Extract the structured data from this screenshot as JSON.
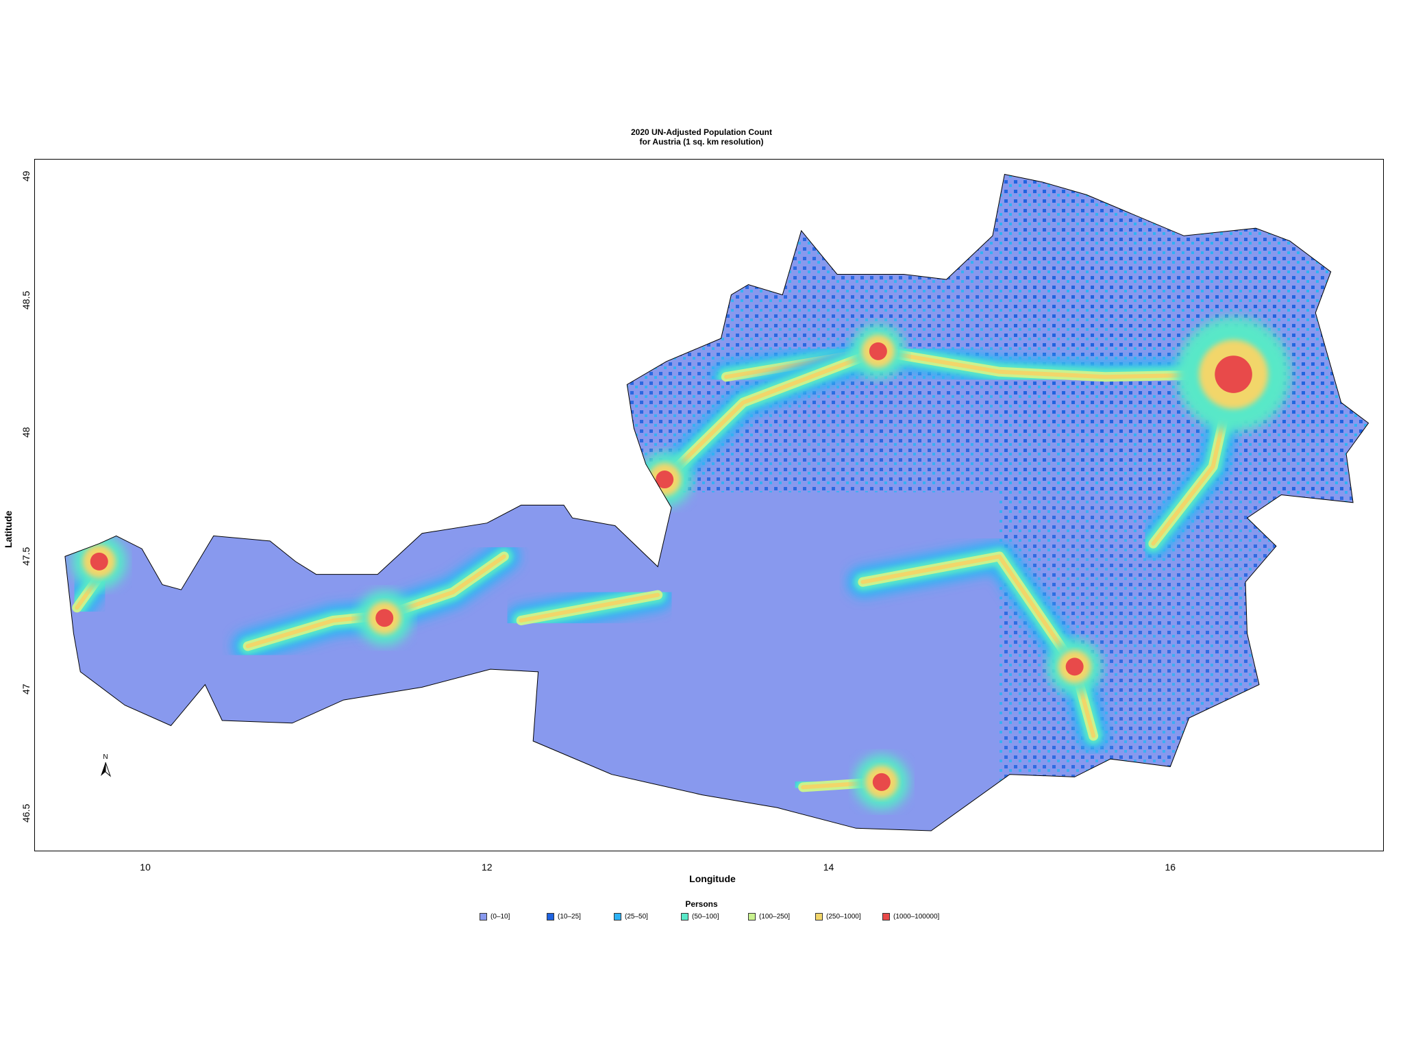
{
  "title": {
    "line1": "2020 UN-Adjusted Population Count",
    "line2": "for Austria (1 sq. km resolution)"
  },
  "axes": {
    "xlabel": "Longitude",
    "ylabel": "Latitude",
    "xticks": [
      "10",
      "12",
      "14",
      "16"
    ],
    "yticks": [
      "49",
      "48.5",
      "48",
      "47.5",
      "47",
      "46.5"
    ],
    "xlim": [
      9.35,
      17.25
    ],
    "ylim": [
      46.35,
      49.05
    ]
  },
  "north_arrow": {
    "label": "N"
  },
  "legend": {
    "title": "Persons",
    "items": [
      {
        "label": "(0–10]",
        "color": "#8899EE"
      },
      {
        "label": "(10–25]",
        "color": "#1F63E0"
      },
      {
        "label": "(25–50]",
        "color": "#2DB2F5"
      },
      {
        "label": "(50–100]",
        "color": "#58E8C8"
      },
      {
        "label": "(100–250]",
        "color": "#C9F28F"
      },
      {
        "label": "(250–1000]",
        "color": "#F2D66A"
      },
      {
        "label": "(1000–100000]",
        "color": "#E84A4A"
      }
    ]
  },
  "chart_data": {
    "type": "heatmap",
    "title": "2020 UN-Adjusted Population Count for Austria (1 sq. km resolution)",
    "xlabel": "Longitude",
    "ylabel": "Latitude",
    "xlim": [
      9.35,
      17.25
    ],
    "ylim": [
      46.35,
      49.05
    ],
    "legend_title": "Persons",
    "classes": [
      "(0–10]",
      "(10–25]",
      "(25–50]",
      "(50–100]",
      "(100–250]",
      "(250–1000]",
      "(1000–100000]"
    ],
    "outline": [
      [
        9.53,
        47.5
      ],
      [
        9.73,
        47.55
      ],
      [
        9.83,
        47.58
      ],
      [
        9.98,
        47.53
      ],
      [
        10.1,
        47.39
      ],
      [
        10.21,
        47.37
      ],
      [
        10.4,
        47.58
      ],
      [
        10.73,
        47.56
      ],
      [
        10.88,
        47.48
      ],
      [
        11.0,
        47.43
      ],
      [
        11.36,
        47.43
      ],
      [
        11.62,
        47.59
      ],
      [
        12.0,
        47.63
      ],
      [
        12.2,
        47.7
      ],
      [
        12.45,
        47.7
      ],
      [
        12.5,
        47.65
      ],
      [
        12.75,
        47.62
      ],
      [
        13.0,
        47.46
      ],
      [
        13.08,
        47.69
      ],
      [
        12.93,
        47.86
      ],
      [
        12.86,
        48.0
      ],
      [
        12.82,
        48.17
      ],
      [
        13.05,
        48.26
      ],
      [
        13.37,
        48.35
      ],
      [
        13.43,
        48.52
      ],
      [
        13.53,
        48.56
      ],
      [
        13.73,
        48.52
      ],
      [
        13.84,
        48.77
      ],
      [
        14.05,
        48.6
      ],
      [
        14.44,
        48.6
      ],
      [
        14.69,
        48.58
      ],
      [
        14.96,
        48.75
      ],
      [
        15.03,
        48.99
      ],
      [
        15.25,
        48.96
      ],
      [
        15.51,
        48.91
      ],
      [
        16.08,
        48.75
      ],
      [
        16.5,
        48.78
      ],
      [
        16.7,
        48.73
      ],
      [
        16.94,
        48.61
      ],
      [
        16.85,
        48.45
      ],
      [
        17.0,
        48.1
      ],
      [
        17.16,
        48.02
      ],
      [
        17.03,
        47.9
      ],
      [
        17.07,
        47.71
      ],
      [
        16.65,
        47.74
      ],
      [
        16.45,
        47.65
      ],
      [
        16.62,
        47.54
      ],
      [
        16.44,
        47.4
      ],
      [
        16.45,
        47.2
      ],
      [
        16.52,
        47.0
      ],
      [
        16.11,
        46.87
      ],
      [
        16.0,
        46.68
      ],
      [
        15.65,
        46.71
      ],
      [
        15.44,
        46.64
      ],
      [
        15.06,
        46.65
      ],
      [
        14.6,
        46.43
      ],
      [
        14.16,
        46.44
      ],
      [
        13.7,
        46.52
      ],
      [
        13.26,
        46.57
      ],
      [
        12.73,
        46.65
      ],
      [
        12.27,
        46.78
      ],
      [
        12.3,
        47.05
      ],
      [
        12.02,
        47.06
      ],
      [
        11.62,
        46.99
      ],
      [
        11.16,
        46.94
      ],
      [
        10.86,
        46.85
      ],
      [
        10.45,
        46.86
      ],
      [
        10.35,
        47.0
      ],
      [
        10.15,
        46.84
      ],
      [
        9.88,
        46.92
      ],
      [
        9.62,
        47.05
      ],
      [
        9.58,
        47.2
      ],
      [
        9.53,
        47.5
      ]
    ],
    "hotspots": [
      {
        "name_visible": false,
        "lon": 16.37,
        "lat": 48.21,
        "class": 6
      },
      {
        "name_visible": false,
        "lon": 15.44,
        "lat": 47.07,
        "class": 6
      },
      {
        "name_visible": false,
        "lon": 14.29,
        "lat": 48.3,
        "class": 6
      },
      {
        "name_visible": false,
        "lon": 13.04,
        "lat": 47.8,
        "class": 6
      },
      {
        "name_visible": false,
        "lon": 11.4,
        "lat": 47.26,
        "class": 6
      },
      {
        "name_visible": false,
        "lon": 14.31,
        "lat": 46.62,
        "class": 6
      },
      {
        "name_visible": false,
        "lon": 9.73,
        "lat": 47.48,
        "class": 6
      }
    ],
    "corridors": [
      [
        [
          9.6,
          47.3
        ],
        [
          9.75,
          47.44
        ]
      ],
      [
        [
          10.6,
          47.15
        ],
        [
          11.1,
          47.25
        ],
        [
          11.4,
          47.27
        ],
        [
          11.8,
          47.36
        ],
        [
          12.1,
          47.5
        ]
      ],
      [
        [
          12.2,
          47.25
        ],
        [
          13.0,
          47.35
        ]
      ],
      [
        [
          13.4,
          48.2
        ],
        [
          14.29,
          48.3
        ],
        [
          15.0,
          48.22
        ],
        [
          15.62,
          48.2
        ],
        [
          16.37,
          48.21
        ]
      ],
      [
        [
          16.37,
          48.21
        ],
        [
          16.25,
          47.85
        ],
        [
          15.9,
          47.55
        ]
      ],
      [
        [
          14.2,
          47.4
        ],
        [
          15.0,
          47.5
        ],
        [
          15.44,
          47.07
        ],
        [
          15.55,
          46.8
        ]
      ],
      [
        [
          13.85,
          46.6
        ],
        [
          14.31,
          46.62
        ]
      ],
      [
        [
          13.04,
          47.8
        ],
        [
          13.5,
          48.1
        ],
        [
          14.29,
          48.3
        ]
      ]
    ]
  }
}
